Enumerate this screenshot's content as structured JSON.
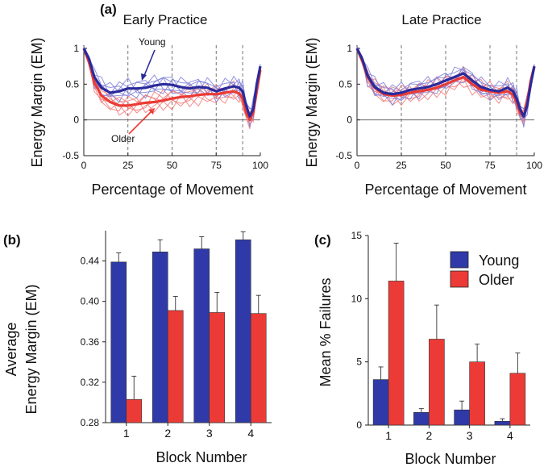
{
  "figure": {
    "panel_a_label": "(a)",
    "panel_b_label": "(b)",
    "panel_c_label": "(c)"
  },
  "colors": {
    "young": "#2b2a9a",
    "young_light": "#7f80d8",
    "older": "#ea3b35",
    "older_light": "#f27a78",
    "bar_young": "#2f3aa8",
    "bar_older": "#ec3b37"
  },
  "chart_data": [
    {
      "id": "early",
      "type": "line",
      "title": "Early Practice",
      "xlabel": "Percentage of Movement",
      "ylabel": "Energy Margin (EM)",
      "xlim": [
        0,
        100
      ],
      "ylim": [
        -0.5,
        1
      ],
      "xticks": [
        0,
        25,
        50,
        75,
        100
      ],
      "yticks": [
        -0.5,
        0,
        0.5,
        1
      ],
      "ytick_labels": [
        "-0.5",
        "0",
        "0.5",
        "1"
      ],
      "dashed_x": [
        25,
        50,
        75,
        90
      ],
      "annotations": [
        {
          "text": "Young",
          "series": "Young"
        },
        {
          "text": "Older",
          "series": "Older"
        }
      ],
      "x": [
        0,
        3,
        6,
        10,
        15,
        20,
        25,
        30,
        35,
        40,
        45,
        50,
        55,
        60,
        65,
        70,
        75,
        80,
        85,
        88,
        90,
        92,
        94,
        96,
        98,
        100
      ],
      "series": [
        {
          "name": "Young",
          "values": [
            1.0,
            0.85,
            0.6,
            0.45,
            0.38,
            0.4,
            0.44,
            0.44,
            0.45,
            0.48,
            0.5,
            0.49,
            0.46,
            0.44,
            0.46,
            0.45,
            0.4,
            0.44,
            0.47,
            0.45,
            0.4,
            0.2,
            0.05,
            0.15,
            0.5,
            0.75
          ]
        },
        {
          "name": "Older",
          "values": [
            1.0,
            0.8,
            0.52,
            0.34,
            0.25,
            0.2,
            0.2,
            0.22,
            0.24,
            0.25,
            0.27,
            0.3,
            0.32,
            0.33,
            0.35,
            0.36,
            0.36,
            0.38,
            0.4,
            0.37,
            0.3,
            0.1,
            0.0,
            0.1,
            0.4,
            0.7
          ]
        }
      ]
    },
    {
      "id": "late",
      "type": "line",
      "title": "Late Practice",
      "xlabel": "Percentage of Movement",
      "ylabel": "Energy Margin (EM)",
      "xlim": [
        0,
        100
      ],
      "ylim": [
        -0.5,
        1
      ],
      "xticks": [
        0,
        25,
        50,
        75,
        100
      ],
      "yticks": [
        -0.5,
        0,
        0.5,
        1
      ],
      "ytick_labels": [
        "-0.5",
        "0",
        "0.5",
        "1"
      ],
      "dashed_x": [
        25,
        50,
        75,
        90
      ],
      "x": [
        0,
        3,
        6,
        10,
        15,
        20,
        25,
        30,
        35,
        40,
        45,
        50,
        55,
        60,
        65,
        70,
        75,
        80,
        85,
        88,
        90,
        92,
        94,
        96,
        98,
        100
      ],
      "series": [
        {
          "name": "Young",
          "values": [
            1.0,
            0.85,
            0.62,
            0.46,
            0.38,
            0.36,
            0.38,
            0.42,
            0.44,
            0.46,
            0.5,
            0.55,
            0.6,
            0.65,
            0.55,
            0.46,
            0.42,
            0.4,
            0.45,
            0.4,
            0.3,
            0.15,
            0.05,
            0.2,
            0.5,
            0.75
          ]
        },
        {
          "name": "Older",
          "values": [
            1.0,
            0.82,
            0.6,
            0.45,
            0.36,
            0.34,
            0.35,
            0.38,
            0.4,
            0.42,
            0.45,
            0.5,
            0.55,
            0.6,
            0.5,
            0.42,
            0.4,
            0.38,
            0.4,
            0.35,
            0.25,
            0.1,
            0.05,
            0.25,
            0.55,
            0.75
          ]
        }
      ]
    },
    {
      "id": "avg_em",
      "type": "bar",
      "xlabel": "Block Number",
      "ylabel_line1": "Average",
      "ylabel_line2": "Energy Margin (EM)",
      "categories": [
        "1",
        "2",
        "3",
        "4"
      ],
      "ylim": [
        0.28,
        0.47
      ],
      "yticks": [
        0.28,
        0.32,
        0.36,
        0.4,
        0.44
      ],
      "ytick_labels": [
        "0.28",
        "0.32",
        "0.36",
        "0.40",
        "0.44"
      ],
      "series": [
        {
          "name": "Young",
          "values": [
            0.439,
            0.449,
            0.452,
            0.461
          ],
          "errors": [
            0.009,
            0.012,
            0.012,
            0.008
          ]
        },
        {
          "name": "Older",
          "values": [
            0.303,
            0.391,
            0.389,
            0.388
          ],
          "errors": [
            0.023,
            0.014,
            0.02,
            0.018
          ]
        }
      ]
    },
    {
      "id": "failures",
      "type": "bar",
      "xlabel": "Block Number",
      "ylabel": "Mean % Failures",
      "categories": [
        "1",
        "2",
        "3",
        "4"
      ],
      "ylim": [
        0,
        15
      ],
      "yticks": [
        0,
        5,
        10,
        15
      ],
      "ytick_labels": [
        "0",
        "5",
        "10",
        "15"
      ],
      "legend": [
        "Young",
        "Older"
      ],
      "legend_position": "top-right",
      "series": [
        {
          "name": "Young",
          "values": [
            3.6,
            1.0,
            1.2,
            0.3
          ],
          "errors": [
            1.0,
            0.3,
            0.7,
            0.2
          ]
        },
        {
          "name": "Older",
          "values": [
            11.4,
            6.8,
            5.0,
            4.1
          ],
          "errors": [
            3.0,
            2.7,
            1.4,
            1.6
          ]
        }
      ]
    }
  ]
}
